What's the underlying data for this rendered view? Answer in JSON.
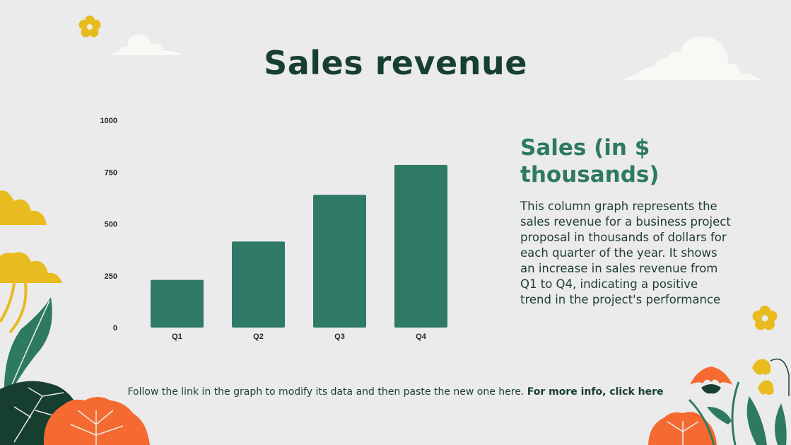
{
  "slide": {
    "title": "Sales revenue",
    "side_heading": "Sales (in $ thousands)",
    "side_description": "This column graph represents the sales revenue for a business project proposal in thousands of dollars for each quarter of the year. It shows an increase in sales revenue from Q1 to Q4, indicating a positive trend in the project's performance",
    "footer_text": "Follow the link in the graph to modify its data and then paste the new one here.",
    "footer_link": "For more info, click here"
  },
  "colors": {
    "bar": "#2e7a66",
    "title": "#173f30",
    "accent_orange": "#f46a30",
    "accent_yellow": "#e8bb1f",
    "leaf_green": "#2e7a61",
    "dark_green": "#173f30",
    "cloud": "#faf8f4"
  },
  "chart_data": {
    "type": "bar",
    "categories": [
      "Q1",
      "Q2",
      "Q3",
      "Q4"
    ],
    "values": [
      230,
      415,
      640,
      785
    ],
    "title": "",
    "xlabel": "",
    "ylabel": "",
    "ylim": [
      0,
      1000
    ],
    "yticks": [
      0,
      250,
      500,
      750,
      1000
    ],
    "grid": false,
    "legend": "none"
  }
}
